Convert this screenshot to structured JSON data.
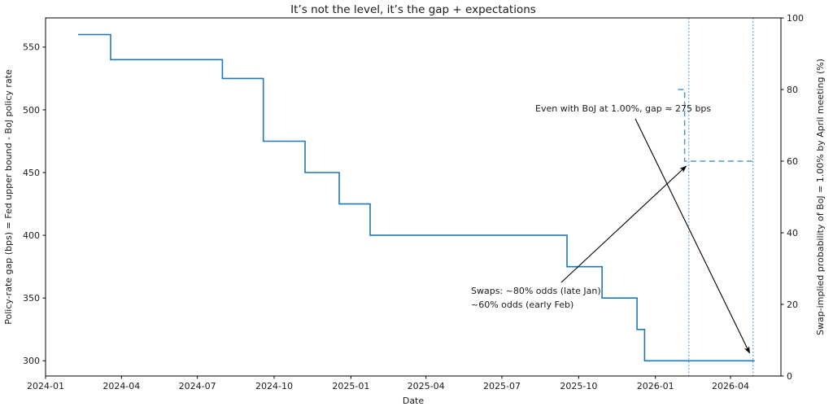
{
  "title": "It’s not the level, it’s the gap + expectations",
  "axes": {
    "xlabel": "Date",
    "ylabel_left": "Policy-rate gap (bps) = Fed upper bound - BoJ policy rate",
    "ylabel_right": "Swap-implied probability of BoJ = 1.00% by April meeting (%)"
  },
  "annotations": {
    "gap_note": "Even with BoJ at 1.00%, gap ≈ 275 bps",
    "swaps_note_line1": "Swaps: ~80% odds (late Jan)",
    "swaps_note_line2": "~60% odds (early Feb)"
  },
  "colors": {
    "series_line": "#1f77b4",
    "guide_blue": "#5596c8",
    "arrow": "#000000",
    "spine": "#000000",
    "text": "#1a1a1a"
  },
  "chart_data": {
    "type": "line",
    "title": "It’s not the level, it’s the gap + expectations",
    "xlabel": "Date",
    "ylabel_left": "Policy-rate gap (bps) = Fed upper bound - BoJ policy rate",
    "ylabel_right": "Swap-implied probability of BoJ = 1.00% by April meeting (%)",
    "x_tick_labels": [
      "2024-01",
      "2024-04",
      "2024-07",
      "2024-10",
      "2025-01",
      "2025-04",
      "2025-07",
      "2025-10",
      "2026-01",
      "2026-04"
    ],
    "y_ticks_left": [
      300,
      350,
      400,
      450,
      500,
      550
    ],
    "y_ticks_right": [
      0,
      20,
      40,
      60,
      80,
      100
    ],
    "ylim_left": [
      288,
      573
    ],
    "ylim_right": [
      0,
      100
    ],
    "grid": false,
    "legend": false,
    "series": [
      {
        "name": "Policy-rate gap (bps) = Fed upper bound - BoJ policy rate",
        "axis": "left",
        "line_style": "solid step",
        "steps": [
          {
            "date": "2024-02-09",
            "value": 560
          },
          {
            "date": "2024-03-19",
            "value": 540
          },
          {
            "date": "2024-07-31",
            "value": 525
          },
          {
            "date": "2024-09-18",
            "value": 475
          },
          {
            "date": "2024-11-07",
            "value": 450
          },
          {
            "date": "2024-12-18",
            "value": 425
          },
          {
            "date": "2025-01-24",
            "value": 400
          },
          {
            "date": "2025-09-17",
            "value": 375
          },
          {
            "date": "2025-10-29",
            "value": 350
          },
          {
            "date": "2025-12-10",
            "value": 325
          },
          {
            "date": "2025-12-19",
            "value": 300
          }
        ],
        "end_date": "2026-04-30"
      },
      {
        "name": "Swap-implied probability of BoJ = 1.00% by April meeting (%)",
        "axis": "right",
        "line_style": "dashed",
        "points": [
          {
            "date": "2026-01-28",
            "value": 80
          },
          {
            "date": "2026-02-05",
            "value": 80
          },
          {
            "date": "2026-02-05",
            "value": 60
          },
          {
            "date": "2026-04-30",
            "value": 60
          }
        ]
      }
    ],
    "vline_dates": [
      "2026-02-10",
      "2026-04-28"
    ],
    "arrow_targets": {
      "gap_note": {
        "date": "2026-04-24",
        "axis": "left",
        "value": 306
      },
      "swaps_note": {
        "date": "2026-02-05",
        "axis": "right",
        "value": 60
      }
    }
  }
}
